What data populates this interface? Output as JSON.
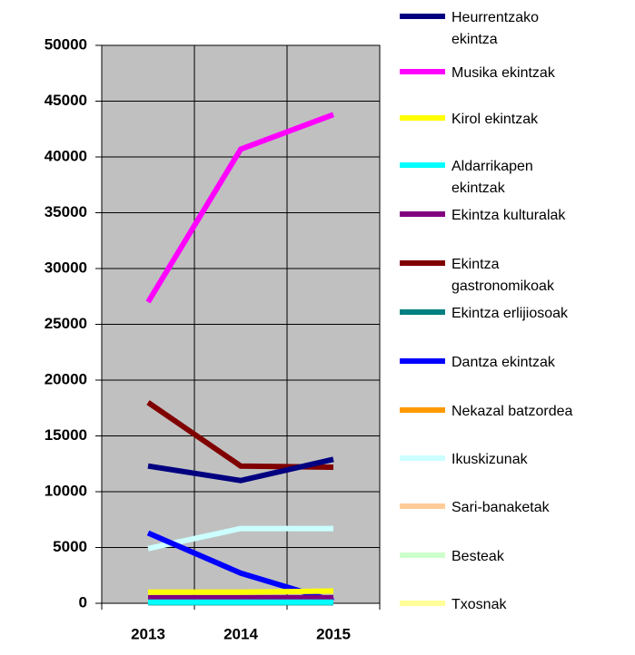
{
  "chart_data": {
    "type": "line",
    "categories": [
      "2013",
      "2014",
      "2015"
    ],
    "ylim": [
      0,
      50000
    ],
    "yticks": [
      0,
      5000,
      10000,
      15000,
      20000,
      25000,
      30000,
      35000,
      40000,
      45000,
      50000
    ],
    "grid": true,
    "legend": "right",
    "series": [
      {
        "name": "Heurrentzako ekintza",
        "color": "#000080",
        "values": [
          12300,
          11000,
          12900
        ]
      },
      {
        "name": "Musika ekintzak",
        "color": "#ff00ff",
        "values": [
          27000,
          40700,
          43800
        ]
      },
      {
        "name": "Kirol ekintzak",
        "color": "#ffff00",
        "values": [
          1000,
          1000,
          1100
        ]
      },
      {
        "name": "Aldarrikapen ekintzak",
        "color": "#00ffff",
        "values": [
          100,
          100,
          100
        ]
      },
      {
        "name": "Ekintza kulturalak",
        "color": "#800080",
        "values": [
          500,
          500,
          500
        ]
      },
      {
        "name": "Ekintza gastronomikoak",
        "color": "#800000",
        "values": [
          18000,
          12300,
          12200
        ]
      },
      {
        "name": "Ekintza erlijiosoak",
        "color": "#008080",
        "values": [
          50,
          50,
          50
        ]
      },
      {
        "name": "Dantza ekintzak",
        "color": "#0000ff",
        "values": [
          6300,
          2700,
          200
        ]
      },
      {
        "name": "Nekazal batzordea",
        "color": "#ff9900",
        "values": [
          150,
          150,
          150
        ]
      },
      {
        "name": "Ikuskizunak",
        "color": "#ccffff",
        "values": [
          4900,
          6700,
          6700
        ]
      },
      {
        "name": "Sari-banaketak",
        "color": "#ffcc99",
        "values": [
          80,
          80,
          80
        ]
      },
      {
        "name": "Besteak",
        "color": "#ccffcc",
        "values": [
          60,
          60,
          60
        ]
      },
      {
        "name": "Txosnak",
        "color": "#ffff99",
        "values": [
          120,
          120,
          120
        ]
      }
    ]
  }
}
